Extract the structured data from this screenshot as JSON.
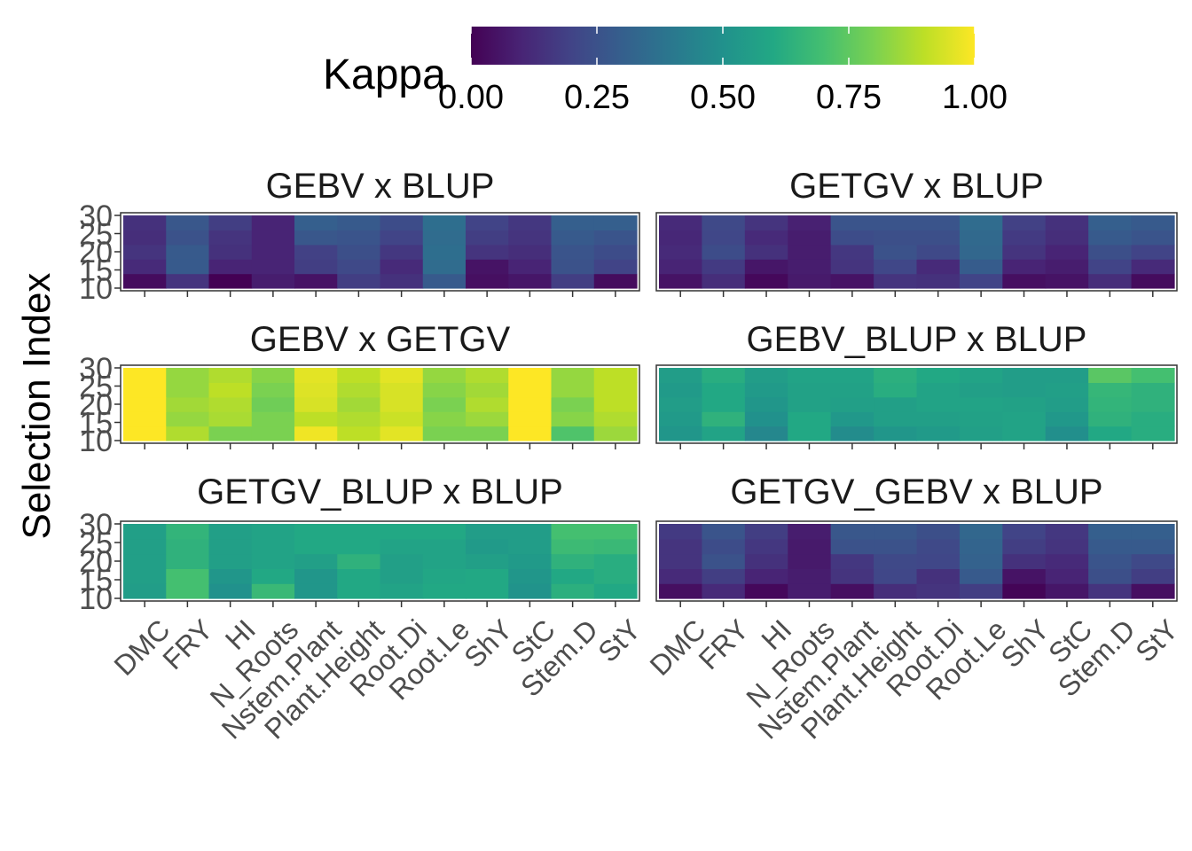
{
  "chart_data": {
    "type": "heatmap",
    "ylabel": "Selection Index",
    "legend": {
      "title": "Kappa",
      "position": "top",
      "range": [
        0,
        1
      ],
      "ticks": [
        0,
        0.25,
        0.5,
        0.75,
        1
      ],
      "tick_labels": [
        "0.00",
        "0.25",
        "0.50",
        "0.75",
        "1.00"
      ],
      "colormap": "viridis"
    },
    "traits": [
      "DMC",
      "FRY",
      "HI",
      "N_Roots",
      "Nstem.Plant",
      "Plant.Height",
      "Root.Di",
      "Root.Le",
      "ShY",
      "StC",
      "Stem.D",
      "StY"
    ],
    "selection_index": [
      10,
      15,
      20,
      25,
      30
    ],
    "selection_index_labels": [
      "10",
      "15",
      "20",
      "25",
      "30"
    ],
    "panels": [
      {
        "title": "GEBV x BLUP",
        "values": [
          [
            0.03,
            0.15,
            0.0,
            0.08,
            0.05,
            0.18,
            0.14,
            0.28,
            0.04,
            0.06,
            0.18,
            0.03
          ],
          [
            0.12,
            0.28,
            0.1,
            0.1,
            0.18,
            0.22,
            0.12,
            0.35,
            0.05,
            0.1,
            0.25,
            0.2
          ],
          [
            0.15,
            0.28,
            0.14,
            0.1,
            0.19,
            0.24,
            0.16,
            0.36,
            0.15,
            0.13,
            0.26,
            0.23
          ],
          [
            0.13,
            0.25,
            0.15,
            0.1,
            0.27,
            0.26,
            0.2,
            0.35,
            0.18,
            0.15,
            0.28,
            0.26
          ],
          [
            0.14,
            0.27,
            0.18,
            0.1,
            0.3,
            0.28,
            0.23,
            0.36,
            0.2,
            0.16,
            0.3,
            0.3
          ]
        ]
      },
      {
        "title": "GETGV x BLUP",
        "values": [
          [
            0.05,
            0.13,
            0.02,
            0.07,
            0.05,
            0.15,
            0.14,
            0.2,
            0.04,
            0.05,
            0.13,
            0.03
          ],
          [
            0.1,
            0.17,
            0.06,
            0.08,
            0.15,
            0.21,
            0.12,
            0.29,
            0.1,
            0.08,
            0.2,
            0.12
          ],
          [
            0.12,
            0.23,
            0.14,
            0.08,
            0.16,
            0.25,
            0.22,
            0.33,
            0.15,
            0.1,
            0.24,
            0.2
          ],
          [
            0.11,
            0.21,
            0.12,
            0.08,
            0.23,
            0.24,
            0.24,
            0.34,
            0.17,
            0.13,
            0.28,
            0.26
          ],
          [
            0.12,
            0.22,
            0.15,
            0.09,
            0.26,
            0.26,
            0.26,
            0.35,
            0.19,
            0.14,
            0.3,
            0.28
          ]
        ]
      },
      {
        "title": "GEBV x GETGV",
        "values": [
          [
            1.0,
            0.88,
            0.8,
            0.8,
            0.98,
            0.9,
            0.96,
            0.8,
            0.8,
            1.0,
            0.72,
            0.85
          ],
          [
            1.0,
            0.84,
            0.87,
            0.8,
            0.9,
            0.88,
            0.92,
            0.82,
            0.85,
            1.0,
            0.82,
            0.88
          ],
          [
            1.0,
            0.86,
            0.88,
            0.78,
            0.94,
            0.86,
            0.94,
            0.8,
            0.88,
            1.0,
            0.8,
            0.9
          ],
          [
            1.0,
            0.84,
            0.9,
            0.8,
            0.95,
            0.88,
            0.94,
            0.82,
            0.86,
            1.0,
            0.84,
            0.9
          ],
          [
            1.0,
            0.84,
            0.88,
            0.82,
            0.96,
            0.9,
            0.96,
            0.84,
            0.88,
            1.0,
            0.84,
            0.9
          ]
        ]
      },
      {
        "title": "GEBV_BLUP x BLUP",
        "values": [
          [
            0.52,
            0.58,
            0.46,
            0.6,
            0.48,
            0.52,
            0.54,
            0.56,
            0.58,
            0.49,
            0.6,
            0.62
          ],
          [
            0.54,
            0.64,
            0.5,
            0.6,
            0.53,
            0.56,
            0.56,
            0.57,
            0.58,
            0.53,
            0.64,
            0.62
          ],
          [
            0.55,
            0.6,
            0.52,
            0.57,
            0.56,
            0.56,
            0.58,
            0.58,
            0.57,
            0.55,
            0.65,
            0.64
          ],
          [
            0.54,
            0.6,
            0.54,
            0.57,
            0.57,
            0.62,
            0.58,
            0.56,
            0.55,
            0.56,
            0.66,
            0.64
          ],
          [
            0.55,
            0.62,
            0.55,
            0.58,
            0.58,
            0.63,
            0.6,
            0.58,
            0.55,
            0.55,
            0.74,
            0.7
          ]
        ]
      },
      {
        "title": "GETGV_BLUP x BLUP",
        "values": [
          [
            0.55,
            0.7,
            0.5,
            0.67,
            0.52,
            0.6,
            0.58,
            0.6,
            0.6,
            0.51,
            0.63,
            0.6
          ],
          [
            0.56,
            0.7,
            0.52,
            0.6,
            0.52,
            0.6,
            0.56,
            0.59,
            0.6,
            0.52,
            0.6,
            0.62
          ],
          [
            0.56,
            0.64,
            0.56,
            0.58,
            0.56,
            0.64,
            0.56,
            0.58,
            0.56,
            0.54,
            0.64,
            0.62
          ],
          [
            0.56,
            0.64,
            0.56,
            0.58,
            0.6,
            0.6,
            0.58,
            0.58,
            0.54,
            0.55,
            0.68,
            0.67
          ],
          [
            0.56,
            0.65,
            0.56,
            0.58,
            0.6,
            0.6,
            0.6,
            0.6,
            0.55,
            0.55,
            0.7,
            0.7
          ]
        ]
      },
      {
        "title": "GETGV_GEBV x BLUP",
        "values": [
          [
            0.04,
            0.12,
            0.02,
            0.08,
            0.04,
            0.13,
            0.15,
            0.18,
            0.01,
            0.06,
            0.15,
            0.04
          ],
          [
            0.12,
            0.18,
            0.1,
            0.08,
            0.15,
            0.21,
            0.14,
            0.28,
            0.05,
            0.1,
            0.24,
            0.18
          ],
          [
            0.15,
            0.25,
            0.14,
            0.07,
            0.16,
            0.22,
            0.21,
            0.31,
            0.14,
            0.12,
            0.26,
            0.22
          ],
          [
            0.15,
            0.23,
            0.16,
            0.07,
            0.25,
            0.25,
            0.22,
            0.32,
            0.18,
            0.15,
            0.28,
            0.28
          ],
          [
            0.17,
            0.26,
            0.18,
            0.08,
            0.27,
            0.27,
            0.24,
            0.33,
            0.2,
            0.16,
            0.3,
            0.3
          ]
        ]
      }
    ]
  }
}
